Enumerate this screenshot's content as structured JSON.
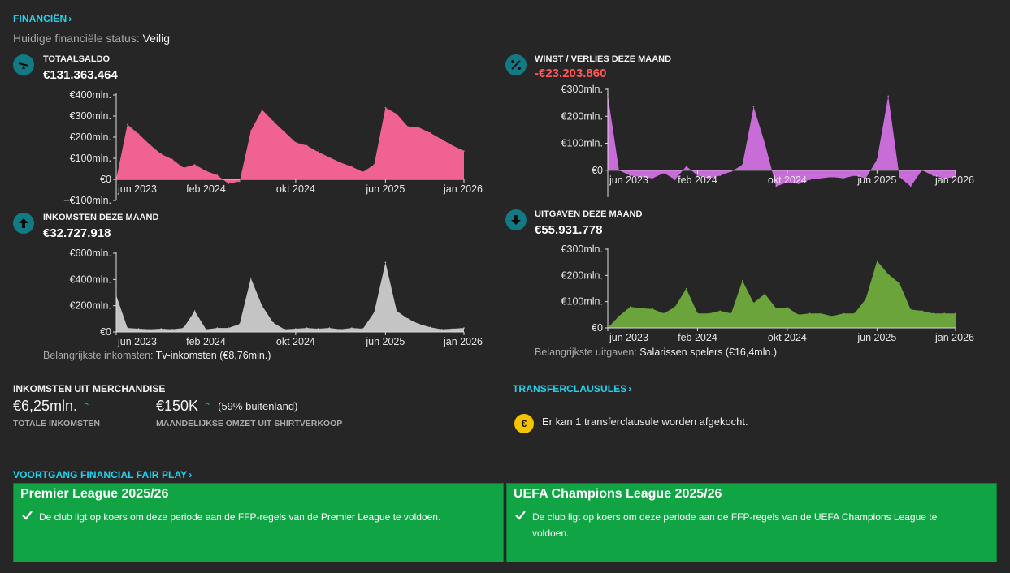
{
  "header": {
    "finance_link": "FINANCIËN",
    "status_label": "Huidige financiële status:",
    "status_value": "Veilig"
  },
  "cards": {
    "balance": {
      "title": "TOTAALSALDO",
      "value": "€131.363.464",
      "icon": "scale-icon"
    },
    "profit": {
      "title": "WINST / VERLIES DEZE MAAND",
      "value": "-€23.203.860",
      "icon": "percent-icon"
    },
    "income": {
      "title": "INKOMSTEN DEZE MAAND",
      "value": "€32.727.918",
      "icon": "arrow-up-icon",
      "footnote_label": "Belangrijkste inkomsten:",
      "footnote_value": "Tv-inkomsten (€8,76mln.)"
    },
    "expenses": {
      "title": "UITGAVEN DEZE MAAND",
      "value": "€55.931.778",
      "icon": "arrow-down-icon",
      "footnote_label": "Belangrijkste uitgaven:",
      "footnote_value": "Salarissen spelers (€16,4mln.)"
    }
  },
  "merch": {
    "title": "INKOMSTEN UIT MERCHANDISE",
    "total_value": "€6,25mln.",
    "total_label": "TOTALE INKOMSTEN",
    "shirt_value": "€150K",
    "shirt_note": "(59% buitenland)",
    "shirt_label": "MAANDELIJKSE OMZET UIT SHIRTVERKOOP"
  },
  "transfer": {
    "link": "TRANSFERCLAUSULES",
    "message": "Er kan 1 transferclausule worden afgekocht."
  },
  "ffp": {
    "link": "VOORTGANG FINANCIAL FAIR PLAY",
    "boxes": [
      {
        "title": "Premier League 2025/26",
        "message": "De club ligt op koers om deze periode aan de FFP-regels van de Premier League te voldoen."
      },
      {
        "title": "UEFA Champions League 2025/26",
        "message": "De club ligt op koers om deze periode aan de FFP-regels van de UEFA Champions League te voldoen."
      }
    ]
  },
  "colors": {
    "accent": "#22d3ee",
    "balance": "#f06292",
    "profit": "#c86dd7",
    "income": "#c4c4c4",
    "expenses": "#6aa43a",
    "negative": "#ff5757",
    "ffp_green": "#10a444"
  },
  "chart_data": [
    {
      "id": "balance",
      "type": "area",
      "title": "TOTAALSALDO",
      "x_tick_labels": [
        "jun 2023",
        "feb 2024",
        "okt 2024",
        "jun 2025",
        "jan 2026"
      ],
      "x_tick_index": [
        0,
        8,
        16,
        24,
        31
      ],
      "y_tick_labels": [
        "€400mln.",
        "€300mln.",
        "€200mln.",
        "€100mln.",
        "€0",
        "−€100mln."
      ],
      "y_tick_values": [
        400,
        300,
        200,
        100,
        0,
        -100
      ],
      "ylim": [
        -100,
        400
      ],
      "unit": "mln. €",
      "values": [
        0,
        260,
        215,
        165,
        120,
        95,
        55,
        70,
        40,
        20,
        -20,
        -10,
        230,
        330,
        275,
        225,
        175,
        160,
        130,
        105,
        80,
        60,
        35,
        70,
        340,
        310,
        250,
        245,
        220,
        190,
        160,
        135
      ]
    },
    {
      "id": "profit",
      "type": "area",
      "title": "WINST / VERLIES DEZE MAAND",
      "x_tick_labels": [
        "jun 2023",
        "feb 2024",
        "okt 2024",
        "jun 2025",
        "jan 2026"
      ],
      "x_tick_index": [
        0,
        8,
        16,
        24,
        31
      ],
      "y_tick_labels": [
        "€300mln.",
        "€200mln.",
        "€100mln.",
        "€0"
      ],
      "y_tick_values": [
        300,
        200,
        100,
        0
      ],
      "ylim": [
        -100,
        300
      ],
      "unit": "mln. €",
      "values": [
        280,
        0,
        -20,
        -25,
        -30,
        -10,
        -35,
        15,
        -20,
        -30,
        -20,
        -5,
        20,
        235,
        100,
        -60,
        -45,
        -50,
        -35,
        -30,
        -25,
        -30,
        -20,
        -30,
        40,
        275,
        -25,
        -60,
        0,
        -20,
        -30,
        -25
      ]
    },
    {
      "id": "income",
      "type": "area",
      "title": "INKOMSTEN DEZE MAAND",
      "x_tick_labels": [
        "jun 2023",
        "feb 2024",
        "okt 2024",
        "jun 2025",
        "jan 2026"
      ],
      "x_tick_index": [
        0,
        8,
        16,
        24,
        31
      ],
      "y_tick_labels": [
        "€600mln.",
        "€400mln.",
        "€200mln.",
        "€0"
      ],
      "y_tick_values": [
        600,
        400,
        200,
        0
      ],
      "ylim": [
        0,
        600
      ],
      "unit": "mln. €",
      "values": [
        280,
        30,
        25,
        20,
        25,
        20,
        30,
        160,
        20,
        30,
        30,
        60,
        410,
        200,
        70,
        20,
        25,
        30,
        25,
        30,
        20,
        30,
        25,
        150,
        530,
        160,
        100,
        60,
        35,
        20,
        25,
        30
      ]
    },
    {
      "id": "expenses",
      "type": "area",
      "title": "UITGAVEN DEZE MAAND",
      "x_tick_labels": [
        "jun 2023",
        "feb 2024",
        "okt 2024",
        "jun 2025",
        "jan 2026"
      ],
      "x_tick_index": [
        0,
        8,
        16,
        24,
        31
      ],
      "y_tick_labels": [
        "€300mln.",
        "€200mln.",
        "€100mln.",
        "€0"
      ],
      "y_tick_values": [
        300,
        200,
        100,
        0
      ],
      "ylim": [
        0,
        300
      ],
      "unit": "mln. €",
      "values": [
        0,
        45,
        80,
        75,
        72,
        55,
        80,
        150,
        55,
        55,
        65,
        55,
        180,
        95,
        130,
        75,
        78,
        50,
        55,
        55,
        45,
        55,
        55,
        110,
        255,
        205,
        170,
        70,
        65,
        55,
        55,
        55
      ]
    }
  ]
}
